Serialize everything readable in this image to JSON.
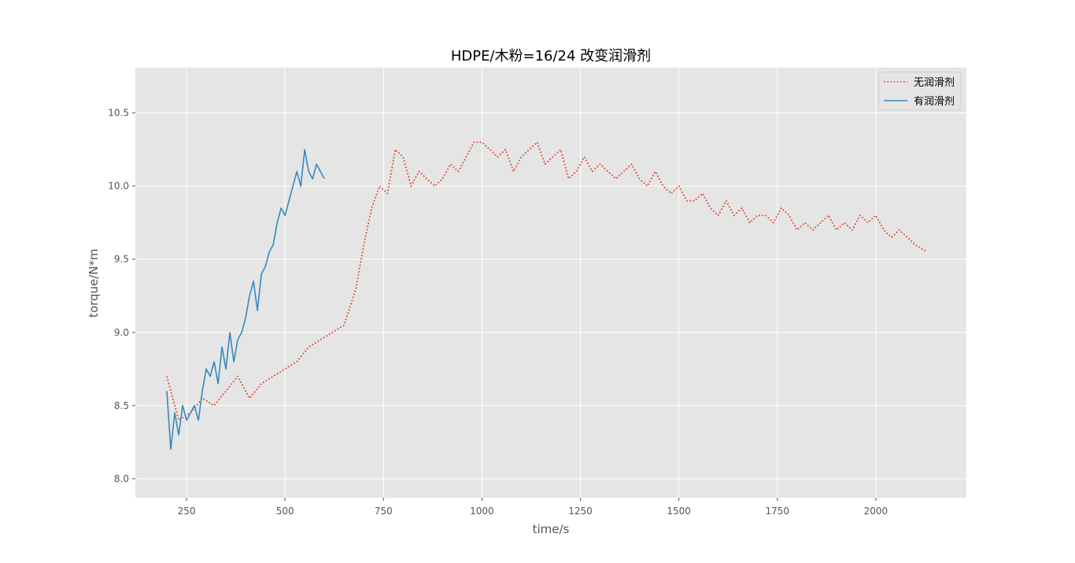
{
  "chart_data": {
    "type": "line",
    "title": "HDPE/木粉=16/24 改变润滑剂",
    "xlabel": "time/s",
    "ylabel": "torque/N*m",
    "xlim": [
      120,
      2230
    ],
    "ylim": [
      7.87,
      10.81
    ],
    "xticks": [
      250,
      500,
      750,
      1000,
      1250,
      1500,
      1750,
      2000
    ],
    "xtick_labels": [
      "250",
      "500",
      "750",
      "1000",
      "1250",
      "1500",
      "1750",
      "2000"
    ],
    "yticks": [
      8.0,
      8.5,
      9.0,
      9.5,
      10.0,
      10.5
    ],
    "ytick_labels": [
      "8.0",
      "8.5",
      "9.0",
      "9.5",
      "10.0",
      "10.5"
    ],
    "grid": true,
    "legend_position": "top-right",
    "background": "#e5e5e5",
    "series": [
      {
        "name": "无润滑剂",
        "color": "#e24a33",
        "style": "dotted",
        "x": [
          200,
          230,
          260,
          290,
          320,
          350,
          380,
          410,
          440,
          470,
          500,
          530,
          560,
          590,
          620,
          650,
          680,
          700,
          720,
          740,
          760,
          780,
          800,
          820,
          840,
          860,
          880,
          900,
          920,
          940,
          960,
          980,
          1000,
          1020,
          1040,
          1060,
          1080,
          1100,
          1120,
          1140,
          1160,
          1180,
          1200,
          1220,
          1240,
          1260,
          1280,
          1300,
          1320,
          1340,
          1360,
          1380,
          1400,
          1420,
          1440,
          1460,
          1480,
          1500,
          1520,
          1540,
          1560,
          1580,
          1600,
          1620,
          1640,
          1660,
          1680,
          1700,
          1720,
          1740,
          1760,
          1780,
          1800,
          1820,
          1840,
          1860,
          1880,
          1900,
          1920,
          1940,
          1960,
          1980,
          2000,
          2020,
          2040,
          2060,
          2080,
          2100,
          2130
        ],
        "values": [
          8.7,
          8.4,
          8.45,
          8.55,
          8.5,
          8.6,
          8.7,
          8.55,
          8.65,
          8.7,
          8.75,
          8.8,
          8.9,
          8.95,
          9.0,
          9.05,
          9.3,
          9.6,
          9.85,
          10.0,
          9.95,
          10.25,
          10.2,
          10.0,
          10.1,
          10.05,
          10.0,
          10.05,
          10.15,
          10.1,
          10.2,
          10.3,
          10.3,
          10.25,
          10.2,
          10.25,
          10.1,
          10.2,
          10.25,
          10.3,
          10.15,
          10.2,
          10.25,
          10.05,
          10.1,
          10.2,
          10.1,
          10.15,
          10.1,
          10.05,
          10.1,
          10.15,
          10.05,
          10.0,
          10.1,
          10.0,
          9.95,
          10.0,
          9.9,
          9.9,
          9.95,
          9.85,
          9.8,
          9.9,
          9.8,
          9.85,
          9.75,
          9.8,
          9.8,
          9.75,
          9.85,
          9.8,
          9.7,
          9.75,
          9.7,
          9.75,
          9.8,
          9.7,
          9.75,
          9.7,
          9.8,
          9.75,
          9.8,
          9.7,
          9.65,
          9.7,
          9.65,
          9.6,
          9.55
        ]
      },
      {
        "name": "有润滑剂",
        "color": "#348abd",
        "style": "solid",
        "x": [
          200,
          210,
          220,
          230,
          240,
          250,
          260,
          270,
          280,
          290,
          300,
          310,
          320,
          330,
          340,
          350,
          360,
          370,
          380,
          390,
          400,
          410,
          420,
          430,
          440,
          450,
          460,
          470,
          480,
          490,
          500,
          510,
          520,
          530,
          540,
          550,
          560,
          570,
          580,
          590,
          600
        ],
        "values": [
          8.6,
          8.2,
          8.45,
          8.3,
          8.5,
          8.4,
          8.45,
          8.5,
          8.4,
          8.6,
          8.75,
          8.7,
          8.8,
          8.65,
          8.9,
          8.75,
          9.0,
          8.8,
          8.95,
          9.0,
          9.1,
          9.25,
          9.35,
          9.15,
          9.4,
          9.45,
          9.55,
          9.6,
          9.75,
          9.85,
          9.8,
          9.9,
          10.0,
          10.1,
          10.0,
          10.25,
          10.1,
          10.05,
          10.15,
          10.1,
          10.05
        ]
      }
    ]
  }
}
